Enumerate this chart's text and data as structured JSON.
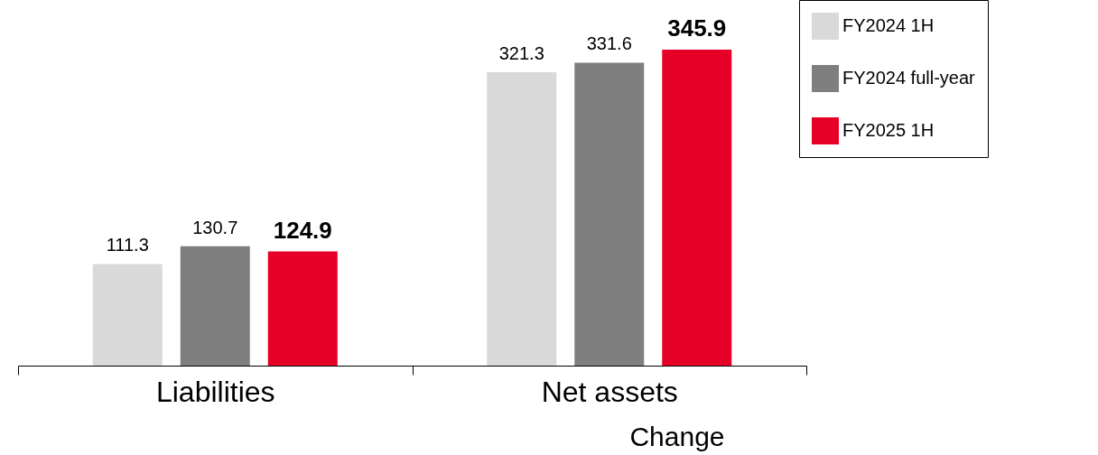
{
  "chart_data": {
    "type": "bar",
    "categories": [
      "Liabilities",
      "Net assets"
    ],
    "series": [
      {
        "name": "FY2024 1H",
        "color": "#d9d9d9",
        "values": [
          111.3,
          321.3
        ]
      },
      {
        "name": "FY2024 full-year",
        "color": "#7f7f7f",
        "values": [
          130.7,
          331.6
        ]
      },
      {
        "name": "FY2025 1H",
        "color": "#e60028",
        "values": [
          124.9,
          345.9
        ]
      }
    ],
    "data_labels": true,
    "legend": "top right",
    "annotations": [
      "Change"
    ]
  }
}
